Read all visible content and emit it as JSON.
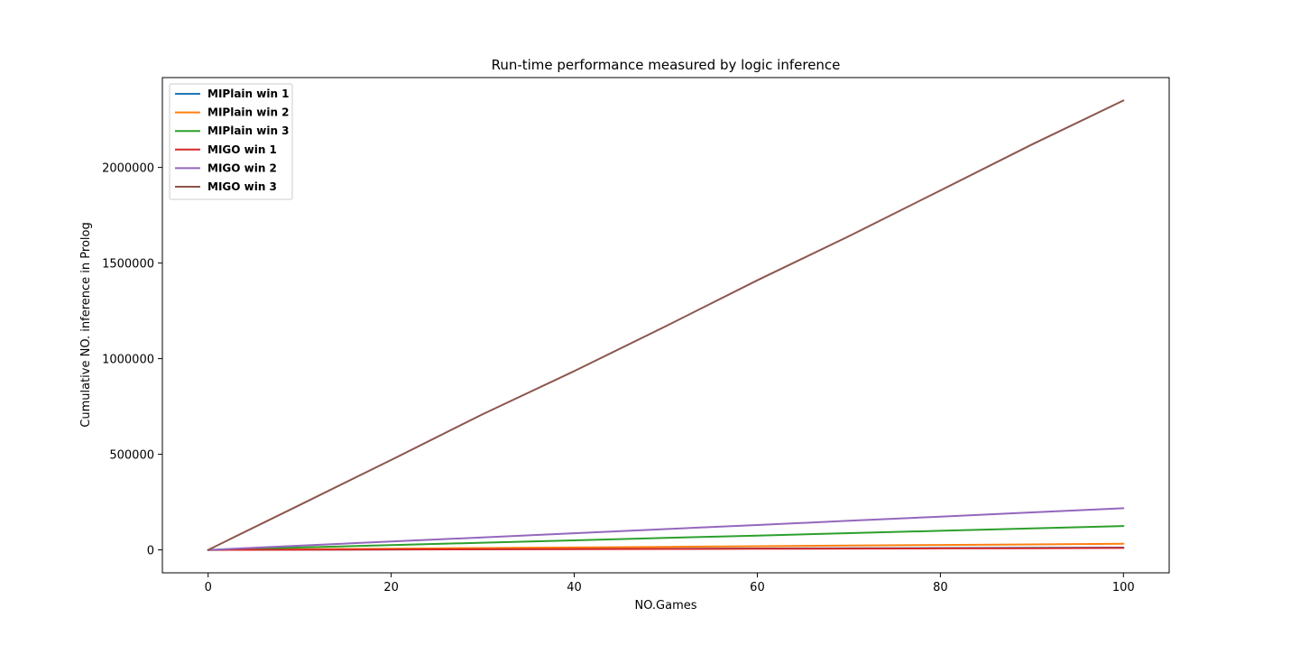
{
  "chart_data": {
    "type": "line",
    "title": "Run-time performance measured by logic inference",
    "xlabel": "NO.Games",
    "ylabel": "Cumulative NO. inference in Prolog",
    "xlim": [
      -5,
      105
    ],
    "ylim": [
      -120000,
      2470000
    ],
    "xticks": [
      0,
      20,
      40,
      60,
      80,
      100
    ],
    "yticks": [
      0,
      500000,
      1000000,
      1500000,
      2000000
    ],
    "x": [
      0,
      10,
      20,
      30,
      40,
      50,
      60,
      70,
      80,
      90,
      100
    ],
    "grid": false,
    "legend_position": "top-left",
    "series": [
      {
        "name": "MIPlain win 1",
        "color": "#1f77b4",
        "values": [
          0,
          1200,
          2400,
          3600,
          4800,
          6000,
          7200,
          8400,
          9600,
          10800,
          12000
        ]
      },
      {
        "name": "MIPlain win 2",
        "color": "#ff7f0e",
        "values": [
          0,
          3200,
          6400,
          9600,
          12800,
          16000,
          19200,
          22400,
          25600,
          28800,
          32000
        ]
      },
      {
        "name": "MIPlain win 3",
        "color": "#2ca02c",
        "values": [
          0,
          12500,
          25000,
          37500,
          50000,
          62500,
          75000,
          87500,
          100000,
          112500,
          125000
        ]
      },
      {
        "name": " MIGO win 1",
        "color": "#d62728",
        "values": [
          0,
          1000,
          2000,
          3000,
          4000,
          5000,
          6000,
          7000,
          8000,
          9000,
          10000
        ]
      },
      {
        "name": " MIGO win 2",
        "color": "#9467bd",
        "values": [
          0,
          22000,
          44000,
          65000,
          87000,
          109000,
          130000,
          152000,
          174000,
          196000,
          218000
        ]
      },
      {
        "name": " MIGO win 3",
        "color": "#8c564b",
        "values": [
          0,
          235000,
          470000,
          710000,
          935000,
          1170000,
          1410000,
          1640000,
          1880000,
          2120000,
          2350000
        ]
      }
    ]
  }
}
